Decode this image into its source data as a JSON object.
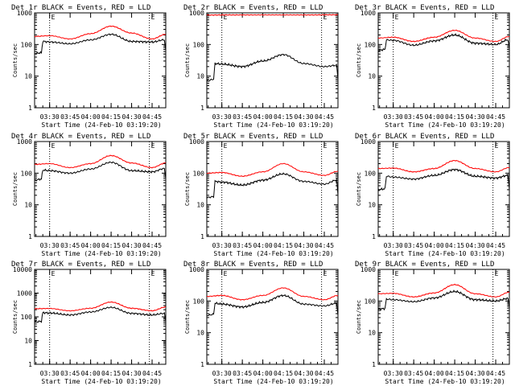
{
  "colors": {
    "events": "#000000",
    "lld": "#ff0000",
    "axes": "#000000",
    "background": "#ffffff"
  },
  "chart_data": [
    {
      "type": "line",
      "title": "Det 1r BLACK = Events, RED = LLD",
      "xlabel": "Start Time (24-Feb-10 03:19:20)",
      "ylabel": "Counts/sec",
      "xticks": [
        "03:30",
        "03:45",
        "04:00",
        "04:15",
        "04:30",
        "04:45"
      ],
      "yticks": [
        "1",
        "10",
        "100",
        "1000"
      ],
      "ylim": [
        1,
        1000
      ],
      "yscale": "log",
      "vlines": [
        "03:30",
        "04:43"
      ],
      "top_marks": [
        "E",
        "E"
      ],
      "series": [
        {
          "x": [
            "03:19",
            "03:24",
            "03:25",
            "03:30",
            "03:45",
            "04:00",
            "04:15",
            "04:30",
            "04:45",
            "04:54",
            "04:55"
          ],
          "values": [
            52,
            55,
            125,
            120,
            105,
            140,
            210,
            125,
            120,
            140,
            65
          ]
        },
        {
          "x": [
            "03:19",
            "03:30",
            "03:45",
            "04:00",
            "04:15",
            "04:30",
            "04:45",
            "04:55"
          ],
          "values": [
            180,
            190,
            150,
            220,
            380,
            230,
            150,
            210
          ]
        }
      ]
    },
    {
      "type": "line",
      "title": "Det 2r BLACK = Events, RED = LLD",
      "xlabel": "Start Time (24-Feb-10 03:19:20)",
      "ylabel": "Counts/sec",
      "xticks": [
        "03:30",
        "03:45",
        "04:00",
        "04:15",
        "04:30",
        "04:45"
      ],
      "yticks": [
        "1",
        "10",
        "100",
        "1000"
      ],
      "ylim": [
        1,
        1000
      ],
      "yscale": "log",
      "vlines": [
        "03:30",
        "04:43"
      ],
      "top_marks": [
        "E",
        "E"
      ],
      "series": [
        {
          "x": [
            "03:19",
            "03:24",
            "03:25",
            "03:30",
            "03:45",
            "04:00",
            "04:15",
            "04:30",
            "04:45",
            "04:54",
            "04:55"
          ],
          "values": [
            7,
            8,
            25,
            24,
            20,
            30,
            48,
            25,
            20,
            22,
            8
          ]
        },
        {
          "x": [
            "03:19",
            "03:30",
            "04:00",
            "04:30",
            "04:55"
          ],
          "values": [
            850,
            860,
            860,
            860,
            870
          ]
        }
      ]
    },
    {
      "type": "line",
      "title": "Det 3r BLACK = Events, RED = LLD",
      "xlabel": "Start Time (24-Feb-10 03:19:20)",
      "ylabel": "Counts/sec",
      "xticks": [
        "03:30",
        "03:45",
        "04:00",
        "04:15",
        "04:30",
        "04:45"
      ],
      "yticks": [
        "1",
        "10",
        "100",
        "1000"
      ],
      "ylim": [
        1,
        1000
      ],
      "yscale": "log",
      "vlines": [
        "03:30",
        "04:43"
      ],
      "top_marks": [
        "E",
        "E"
      ],
      "series": [
        {
          "x": [
            "03:19",
            "03:24",
            "03:25",
            "03:30",
            "03:45",
            "04:00",
            "04:15",
            "04:30",
            "04:45",
            "04:54",
            "04:55"
          ],
          "values": [
            65,
            70,
            140,
            135,
            95,
            130,
            200,
            110,
            100,
            140,
            70
          ]
        },
        {
          "x": [
            "03:19",
            "03:30",
            "03:45",
            "04:00",
            "04:15",
            "04:30",
            "04:45",
            "04:55"
          ],
          "values": [
            160,
            170,
            125,
            170,
            280,
            160,
            125,
            180
          ]
        }
      ]
    },
    {
      "type": "line",
      "title": "Det 4r BLACK = Events, RED = LLD",
      "xlabel": "Start Time (24-Feb-10 03:19:20)",
      "ylabel": "Counts/sec",
      "xticks": [
        "03:30",
        "03:45",
        "04:00",
        "04:15",
        "04:30",
        "04:45"
      ],
      "yticks": [
        "1",
        "10",
        "100",
        "1000"
      ],
      "ylim": [
        1,
        1000
      ],
      "yscale": "log",
      "vlines": [
        "03:30",
        "04:43"
      ],
      "top_marks": [
        "E",
        "E"
      ],
      "series": [
        {
          "x": [
            "03:19",
            "03:24",
            "03:25",
            "03:30",
            "03:45",
            "04:00",
            "04:15",
            "04:30",
            "04:45",
            "04:54",
            "04:55"
          ],
          "values": [
            60,
            65,
            125,
            120,
            100,
            135,
            220,
            120,
            110,
            140,
            70
          ]
        },
        {
          "x": [
            "03:19",
            "03:30",
            "03:45",
            "04:00",
            "04:15",
            "04:30",
            "04:45",
            "04:55"
          ],
          "values": [
            190,
            200,
            150,
            200,
            360,
            210,
            150,
            210
          ]
        }
      ]
    },
    {
      "type": "line",
      "title": "Det 5r BLACK = Events, RED = LLD",
      "xlabel": "Start Time (24-Feb-10 03:19:20)",
      "ylabel": "Counts/sec",
      "xticks": [
        "03:30",
        "03:45",
        "04:00",
        "04:15",
        "04:30",
        "04:45"
      ],
      "yticks": [
        "1",
        "10",
        "100",
        "1000"
      ],
      "ylim": [
        1,
        1000
      ],
      "yscale": "log",
      "vlines": [
        "03:30",
        "04:43"
      ],
      "top_marks": [
        "E",
        "E"
      ],
      "series": [
        {
          "x": [
            "03:19",
            "03:24",
            "03:25",
            "03:30",
            "03:45",
            "04:00",
            "04:15",
            "04:30",
            "04:45",
            "04:54",
            "04:55"
          ],
          "values": [
            17,
            18,
            55,
            52,
            42,
            60,
            95,
            55,
            45,
            60,
            20
          ]
        },
        {
          "x": [
            "03:19",
            "03:30",
            "03:45",
            "04:00",
            "04:15",
            "04:30",
            "04:45",
            "04:55"
          ],
          "values": [
            100,
            105,
            80,
            110,
            200,
            110,
            85,
            115
          ]
        }
      ]
    },
    {
      "type": "line",
      "title": "Det 6r BLACK = Events, RED = LLD",
      "xlabel": "Start Time (24-Feb-10 03:19:20)",
      "ylabel": "Counts/sec",
      "xticks": [
        "03:30",
        "03:45",
        "04:00",
        "04:15",
        "04:30",
        "04:45"
      ],
      "yticks": [
        "1",
        "10",
        "100",
        "1000"
      ],
      "ylim": [
        1,
        1000
      ],
      "yscale": "log",
      "vlines": [
        "03:30",
        "04:43"
      ],
      "top_marks": [
        "E",
        "E"
      ],
      "series": [
        {
          "x": [
            "03:19",
            "03:24",
            "03:25",
            "03:30",
            "03:45",
            "04:00",
            "04:15",
            "04:30",
            "04:45",
            "04:54",
            "04:55"
          ],
          "values": [
            30,
            32,
            80,
            75,
            65,
            85,
            130,
            80,
            70,
            85,
            30
          ]
        },
        {
          "x": [
            "03:19",
            "03:30",
            "03:45",
            "04:00",
            "04:15",
            "04:30",
            "04:45",
            "04:55"
          ],
          "values": [
            140,
            145,
            110,
            140,
            250,
            140,
            110,
            150
          ]
        }
      ]
    },
    {
      "type": "line",
      "title": "Det 7r BLACK = Events, RED = LLD",
      "xlabel": "Start Time (24-Feb-10 03:19:20)",
      "ylabel": "Counts/sec",
      "xticks": [
        "03:30",
        "03:45",
        "04:00",
        "04:15",
        "04:30",
        "04:45"
      ],
      "yticks": [
        "1",
        "10",
        "100",
        "1000",
        "10000"
      ],
      "ylim": [
        1,
        10000
      ],
      "yscale": "log",
      "vlines": [
        "03:30",
        "04:43"
      ],
      "top_marks": [
        "E",
        "E"
      ],
      "series": [
        {
          "x": [
            "03:19",
            "03:24",
            "03:25",
            "03:30",
            "03:45",
            "04:00",
            "04:15",
            "04:30",
            "04:45",
            "04:54",
            "04:55"
          ],
          "values": [
            60,
            65,
            150,
            145,
            120,
            160,
            250,
            140,
            120,
            140,
            65
          ]
        },
        {
          "x": [
            "03:19",
            "03:30",
            "03:45",
            "04:00",
            "04:15",
            "04:30",
            "04:45",
            "04:55"
          ],
          "values": [
            220,
            225,
            180,
            230,
            420,
            230,
            180,
            260
          ]
        }
      ]
    },
    {
      "type": "line",
      "title": "Det 8r BLACK = Events, RED = LLD",
      "xlabel": "Start Time (24-Feb-10 03:19:20)",
      "ylabel": "Counts/sec",
      "xticks": [
        "03:30",
        "03:45",
        "04:00",
        "04:15",
        "04:30",
        "04:45"
      ],
      "yticks": [
        "1",
        "10",
        "100",
        "1000"
      ],
      "ylim": [
        1,
        1000
      ],
      "yscale": "log",
      "vlines": [
        "03:30",
        "04:43"
      ],
      "top_marks": [
        "E",
        "E"
      ],
      "series": [
        {
          "x": [
            "03:19",
            "03:24",
            "03:25",
            "03:30",
            "03:45",
            "04:00",
            "04:15",
            "04:30",
            "04:45",
            "04:54",
            "04:55"
          ],
          "values": [
            35,
            38,
            85,
            80,
            65,
            90,
            150,
            80,
            70,
            85,
            35
          ]
        },
        {
          "x": [
            "03:19",
            "03:30",
            "03:45",
            "04:00",
            "04:15",
            "04:30",
            "04:45",
            "04:55"
          ],
          "values": [
            140,
            150,
            110,
            150,
            260,
            140,
            110,
            150
          ]
        }
      ]
    },
    {
      "type": "line",
      "title": "Det 9r BLACK = Events, RED = LLD",
      "xlabel": "Start Time (24-Feb-10 03:19:20)",
      "ylabel": "Counts/sec",
      "xticks": [
        "03:30",
        "03:45",
        "04:00",
        "04:15",
        "04:30",
        "04:45"
      ],
      "yticks": [
        "1",
        "10",
        "100",
        "1000"
      ],
      "ylim": [
        1,
        1000
      ],
      "yscale": "log",
      "vlines": [
        "03:30",
        "04:43"
      ],
      "top_marks": [
        "E",
        "E"
      ],
      "series": [
        {
          "x": [
            "03:19",
            "03:24",
            "03:25",
            "03:30",
            "03:45",
            "04:00",
            "04:15",
            "04:30",
            "04:45",
            "04:54",
            "04:55"
          ],
          "values": [
            55,
            58,
            115,
            110,
            95,
            125,
            200,
            110,
            100,
            120,
            60
          ]
        },
        {
          "x": [
            "03:19",
            "03:30",
            "03:45",
            "04:00",
            "04:15",
            "04:30",
            "04:45",
            "04:55"
          ],
          "values": [
            170,
            175,
            135,
            180,
            330,
            170,
            135,
            190
          ]
        }
      ]
    }
  ]
}
